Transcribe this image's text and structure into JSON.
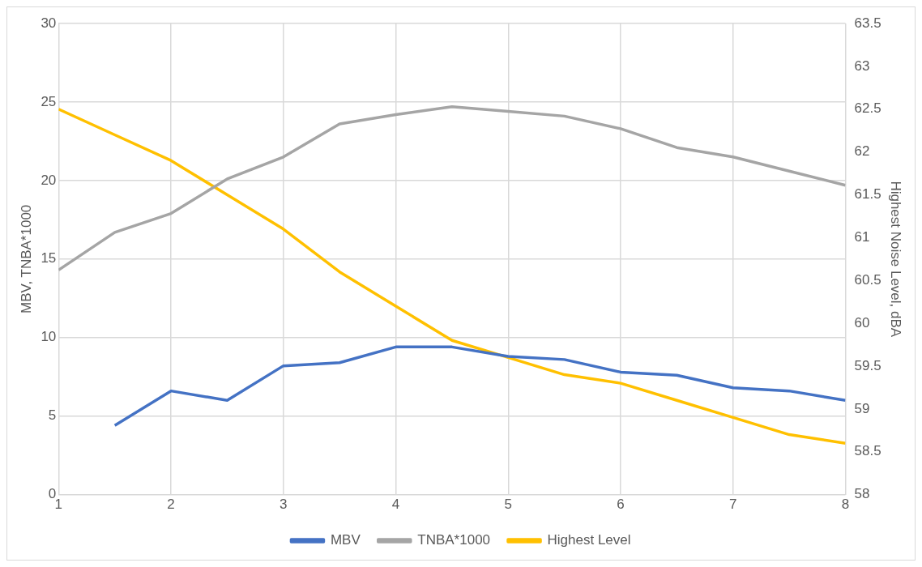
{
  "chart_data": {
    "type": "line",
    "ylabel": "MBV, TNBA*1000",
    "y2label": "Highest Noise Level, dBA",
    "xlim": [
      1,
      8
    ],
    "xticks": [
      1,
      2,
      3,
      4,
      5,
      6,
      7,
      8
    ],
    "ylim": [
      0,
      30
    ],
    "yticks": [
      0,
      5,
      10,
      15,
      20,
      25,
      30
    ],
    "y2lim": [
      58,
      63.5
    ],
    "y2ticks": [
      58,
      58.5,
      59,
      59.5,
      60,
      60.5,
      61,
      61.5,
      62,
      62.5,
      63,
      63.5
    ],
    "grid": true,
    "legend": "bottom",
    "series": [
      {
        "name": "MBV",
        "color": "#4472c4",
        "x": [
          1.5,
          2,
          2.5,
          3,
          3.5,
          4,
          4.5,
          5,
          5.5,
          6,
          6.5,
          7,
          7.5,
          8
        ],
        "values": [
          4.4,
          6.6,
          6.0,
          8.2,
          8.4,
          9.4,
          9.4,
          8.8,
          8.6,
          7.8,
          7.6,
          6.8,
          6.6,
          6.0
        ]
      },
      {
        "name": "TNBA*1000",
        "color": "#a5a5a5",
        "x": [
          1,
          1.5,
          2,
          2.5,
          3,
          3.5,
          4,
          4.5,
          5,
          5.5,
          6,
          6.5,
          7,
          7.5,
          8
        ],
        "values": [
          14.3,
          16.7,
          17.9,
          20.1,
          21.5,
          23.6,
          24.2,
          24.7,
          24.4,
          24.1,
          23.3,
          22.1,
          21.5,
          20.6,
          19.7
        ]
      },
      {
        "name": "Highest Level",
        "color": "#ffc000",
        "axis": "y2",
        "x": [
          1,
          1.5,
          2,
          2.5,
          3,
          3.5,
          4,
          4.5,
          5,
          5.5,
          6,
          6.5,
          7,
          7.5,
          8
        ],
        "values": [
          62.5,
          62.2,
          61.9,
          61.5,
          61.1,
          60.6,
          60.2,
          59.8,
          59.6,
          59.4,
          59.3,
          59.1,
          58.9,
          58.7,
          58.6
        ]
      }
    ]
  }
}
